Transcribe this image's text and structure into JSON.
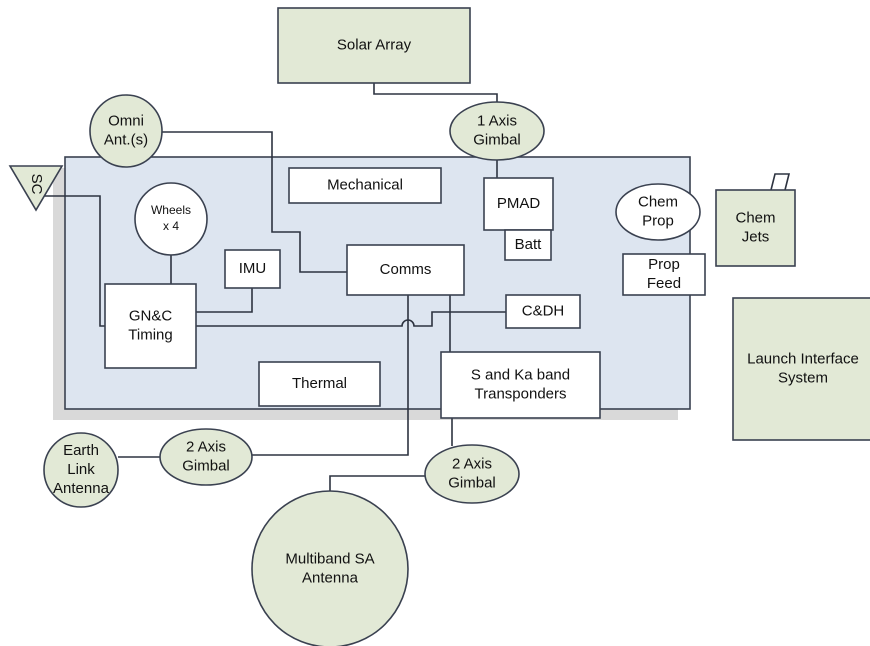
{
  "nodes": [
    {
      "id": "solar",
      "lines": [
        "Solar Array"
      ]
    },
    {
      "id": "omni",
      "lines": [
        "Omni",
        "Ant.(s)"
      ]
    },
    {
      "id": "gimbal1",
      "lines": [
        "1 Axis",
        "Gimbal"
      ]
    },
    {
      "id": "sc",
      "lines": [
        "SC"
      ]
    },
    {
      "id": "mech",
      "lines": [
        "Mechanical"
      ]
    },
    {
      "id": "pmad",
      "lines": [
        "PMAD"
      ]
    },
    {
      "id": "batt",
      "lines": [
        "Batt"
      ]
    },
    {
      "id": "chemprop",
      "lines": [
        "Chem",
        "Prop"
      ]
    },
    {
      "id": "chemjets",
      "lines": [
        "Chem",
        "Jets"
      ]
    },
    {
      "id": "propfeed",
      "lines": [
        "Prop",
        "Feed"
      ]
    },
    {
      "id": "wheels",
      "lines": [
        "Wheels",
        "x 4"
      ]
    },
    {
      "id": "imu",
      "lines": [
        "IMU"
      ]
    },
    {
      "id": "comms",
      "lines": [
        "Comms"
      ]
    },
    {
      "id": "gnc",
      "lines": [
        "GN&C",
        "Timing"
      ]
    },
    {
      "id": "cdh",
      "lines": [
        "C&DH"
      ]
    },
    {
      "id": "thermal",
      "lines": [
        "Thermal"
      ]
    },
    {
      "id": "transp",
      "lines": [
        "S and Ka band",
        "Transponders"
      ]
    },
    {
      "id": "launch",
      "lines": [
        "Launch Interface",
        "System"
      ]
    },
    {
      "id": "earth",
      "lines": [
        "Earth",
        "Link",
        "Antenna"
      ]
    },
    {
      "id": "gimbal2a",
      "lines": [
        "2 Axis",
        "Gimbal"
      ]
    },
    {
      "id": "gimbal2b",
      "lines": [
        "2 Axis",
        "Gimbal"
      ]
    },
    {
      "id": "multiband",
      "lines": [
        "Multiband SA",
        "Antenna"
      ]
    }
  ]
}
